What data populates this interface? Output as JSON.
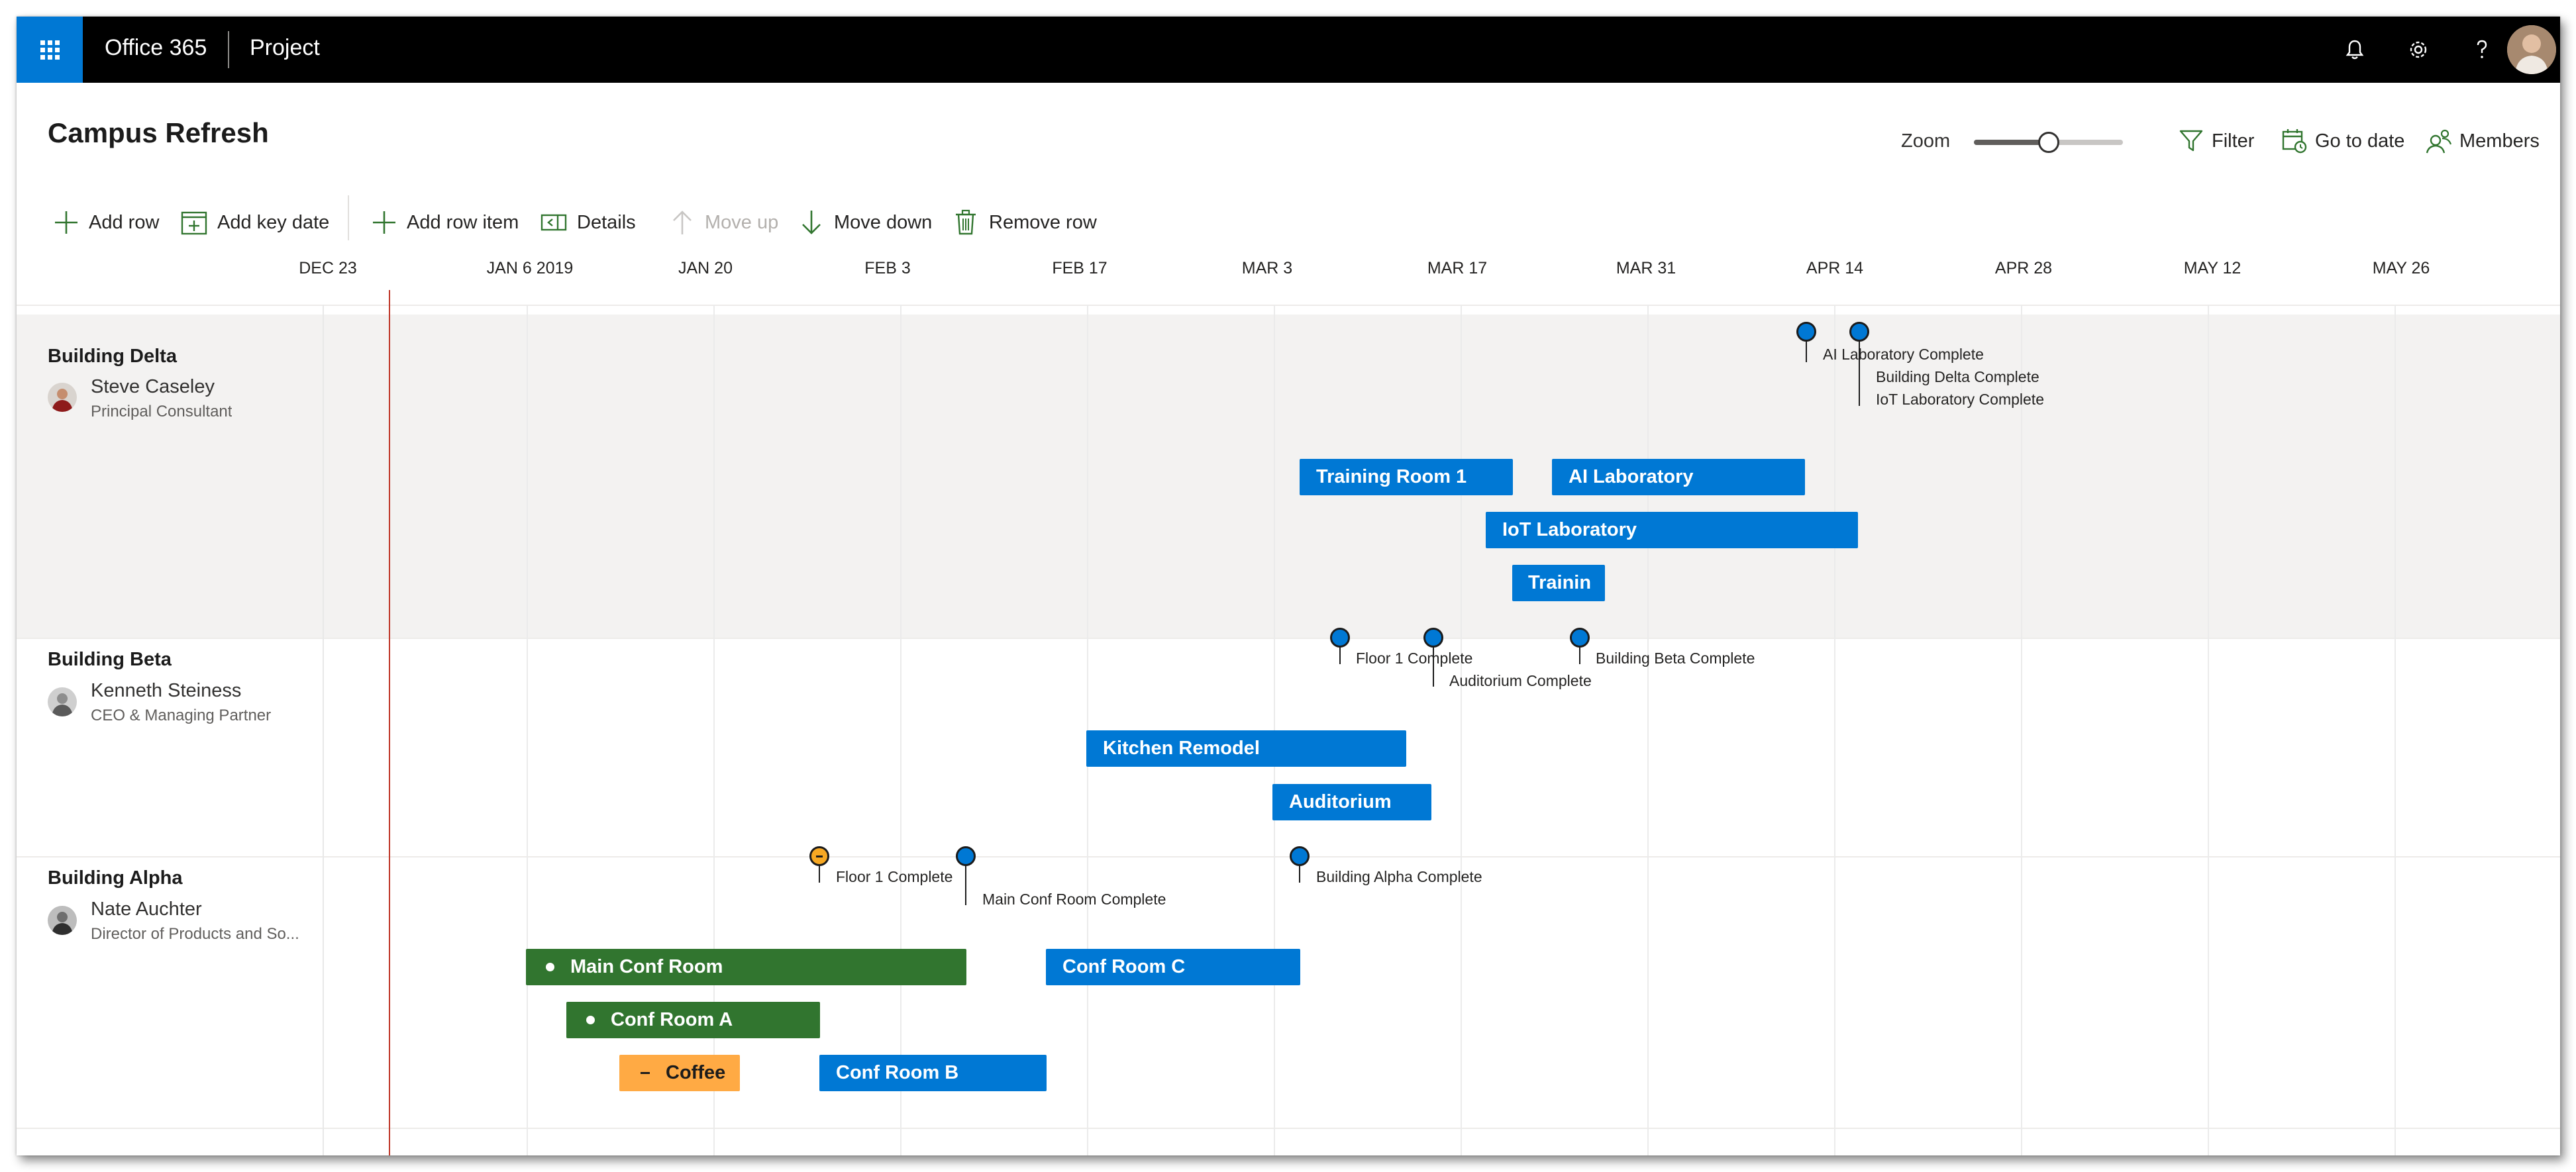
{
  "suite": {
    "brand": "Office 365",
    "app": "Project"
  },
  "page": {
    "title": "Campus Refresh"
  },
  "zoom": {
    "label": "Zoom",
    "level": 0.5
  },
  "header_actions": {
    "filter": "Filter",
    "go_to_date": "Go to date",
    "members": "Members"
  },
  "commands": {
    "add_row": "Add row",
    "add_key_date": "Add key date",
    "add_row_item": "Add row item",
    "details": "Details",
    "move_up": "Move up",
    "move_down": "Move down",
    "remove_row": "Remove row"
  },
  "timeline": {
    "dates": [
      "DEC 23",
      "JAN 6 2019",
      "JAN 20",
      "FEB 3",
      "FEB 17",
      "MAR 3",
      "MAR 17",
      "MAR 31",
      "APR 14",
      "APR 28",
      "MAY 12",
      "MAY 26"
    ]
  },
  "rows": [
    {
      "name": "Building Delta",
      "owner": "Steve Caseley",
      "owner_title": "Principal Consultant",
      "items": [
        "Training Room 1",
        "AI Laboratory",
        "IoT Laboratory",
        "Trainin"
      ],
      "milestones": [
        "AI Laboratory Complete",
        "Building Delta Complete",
        "IoT Laboratory Complete"
      ]
    },
    {
      "name": "Building Beta",
      "owner": "Kenneth Steiness",
      "owner_title": "CEO & Managing Partner",
      "items": [
        "Kitchen Remodel",
        "Auditorium"
      ],
      "milestones": [
        "Floor 1 Complete",
        "Auditorium Complete",
        "Building Beta Complete"
      ]
    },
    {
      "name": "Building Alpha",
      "owner": "Nate Auchter",
      "owner_title": "Director of Products and So...",
      "items": [
        "Main Conf Room",
        "Conf Room C",
        "Conf Room A",
        "Coffee",
        "Conf Room B"
      ],
      "milestones": [
        "Floor 1 Complete",
        "Main Conf Room Complete",
        "Building Alpha Complete"
      ]
    }
  ],
  "colors": {
    "accent": "#0078d4",
    "bar_blue": "#0078d4",
    "bar_green": "#31752f",
    "bar_orange": "#ffaa44",
    "milestone_orange": "#f7a823",
    "today_line": "#c0392b",
    "suite_bar": "#000000"
  }
}
